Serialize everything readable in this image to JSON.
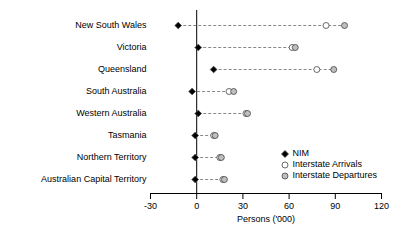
{
  "chart_data": {
    "type": "dot",
    "x_label": "Persons ('000)",
    "categories": [
      "New South Wales",
      "Victoria",
      "Queensland",
      "South Australia",
      "Western Australia",
      "Tasmania",
      "Northern Territory",
      "Australian Capital Territory"
    ],
    "series": [
      {
        "name": "NIM",
        "color": "#000000",
        "marker": "diamond",
        "values": [
          -12,
          1,
          11,
          -3,
          1,
          -1,
          -1,
          -1
        ]
      },
      {
        "name": "Interstate Arrivals",
        "color": "#ffffff",
        "marker": "circle",
        "values": [
          84,
          62,
          78,
          21,
          32,
          11,
          15,
          17
        ]
      },
      {
        "name": "Interstate Departures",
        "color": "#bfbfbf",
        "marker": "circle",
        "values": [
          96,
          64,
          89,
          24,
          33,
          12,
          16,
          18
        ]
      }
    ],
    "xlim": [
      -30,
      120
    ],
    "xticks": [
      -30,
      0,
      30,
      60,
      90,
      120
    ],
    "line_style": "dashed",
    "legend": "lower right"
  }
}
